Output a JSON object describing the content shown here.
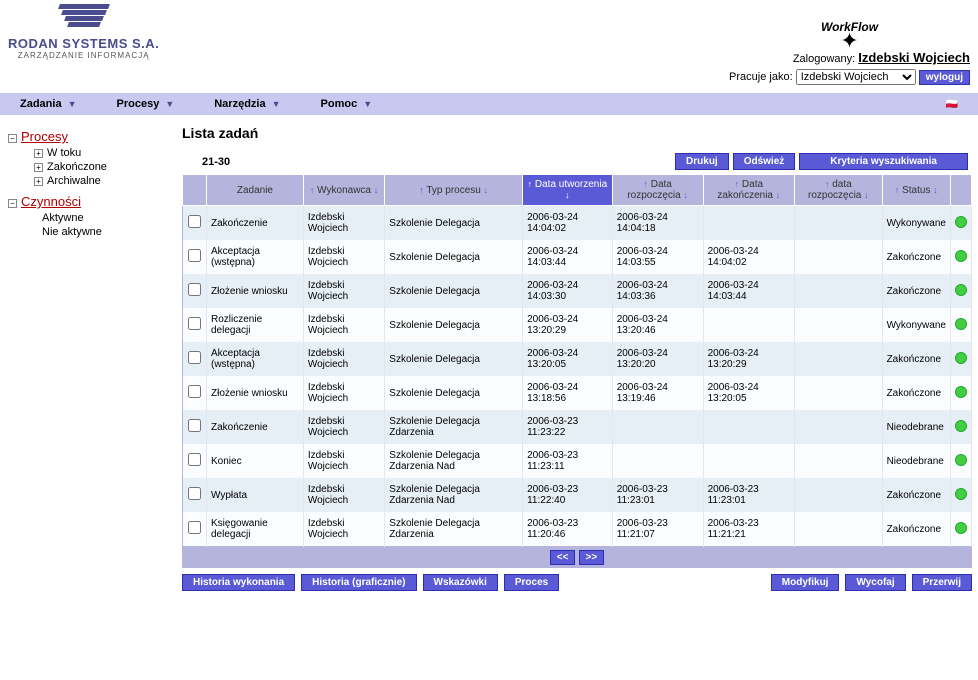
{
  "header": {
    "company_name": "RODAN SYSTEMS S.A.",
    "company_tagline": "ZARZĄDZANIE INFORMACJĄ",
    "workflow_label": "WorkFlow",
    "logged_label": "Zalogowany:",
    "logged_name": "Izdebski Wojciech",
    "works_as_label": "Pracuje jako:",
    "works_as_value": "Izdebski Wojciech",
    "logout_label": "wyloguj"
  },
  "menubar": {
    "items": [
      "Zadania",
      "Procesy",
      "Narzędzia",
      "Pomoc"
    ]
  },
  "sidebar": {
    "groups": [
      {
        "label": "Procesy",
        "expanded": true,
        "children_with_toggle": true,
        "children": [
          "W toku",
          "Zakończone",
          "Archiwalne"
        ]
      },
      {
        "label": "Czynności",
        "expanded": true,
        "children_with_toggle": false,
        "children": [
          "Aktywne",
          "Nie aktywne"
        ]
      }
    ]
  },
  "content": {
    "title": "Lista zadań",
    "range": "21-30",
    "buttons": {
      "print": "Drukuj",
      "refresh": "Odśwież",
      "criteria": "Kryteria wyszukiwania"
    },
    "columns": [
      {
        "label": "",
        "sortable": false
      },
      {
        "label": "Zadanie",
        "sortable": false
      },
      {
        "label": "Wykonawca",
        "sortable": true
      },
      {
        "label": "Typ procesu",
        "sortable": true
      },
      {
        "label": "Data utworzenia",
        "sortable": true,
        "active": true
      },
      {
        "label": "Data rozpoczęcia",
        "sortable": true
      },
      {
        "label": "Data zakończenia",
        "sortable": true
      },
      {
        "label": "data rozpoczęcia",
        "sortable": true
      },
      {
        "label": "Status",
        "sortable": true
      },
      {
        "label": "",
        "sortable": false
      }
    ],
    "rows": [
      {
        "task": "Zakończenie",
        "exec": "Izdebski Wojciech",
        "ptype": "Szkolenie Delegacja",
        "dc": "2006-03-24 14:04:02",
        "ds": "2006-03-24 14:04:18",
        "de": "",
        "da": "",
        "status": "Wykonywane"
      },
      {
        "task": "Akceptacja (wstępna)",
        "exec": "Izdebski Wojciech",
        "ptype": "Szkolenie Delegacja",
        "dc": "2006-03-24 14:03:44",
        "ds": "2006-03-24 14:03:55",
        "de": "2006-03-24 14:04:02",
        "da": "",
        "status": "Zakończone"
      },
      {
        "task": "Złożenie wniosku",
        "exec": "Izdebski Wojciech",
        "ptype": "Szkolenie Delegacja",
        "dc": "2006-03-24 14:03:30",
        "ds": "2006-03-24 14:03:36",
        "de": "2006-03-24 14:03:44",
        "da": "",
        "status": "Zakończone"
      },
      {
        "task": "Rozliczenie delegacji",
        "exec": "Izdebski Wojciech",
        "ptype": "Szkolenie Delegacja",
        "dc": "2006-03-24 13:20:29",
        "ds": "2006-03-24 13:20:46",
        "de": "",
        "da": "",
        "status": "Wykonywane"
      },
      {
        "task": "Akceptacja (wstępna)",
        "exec": "Izdebski Wojciech",
        "ptype": "Szkolenie Delegacja",
        "dc": "2006-03-24 13:20:05",
        "ds": "2006-03-24 13:20:20",
        "de": "2006-03-24 13:20:29",
        "da": "",
        "status": "Zakończone"
      },
      {
        "task": "Złożenie wniosku",
        "exec": "Izdebski Wojciech",
        "ptype": "Szkolenie Delegacja",
        "dc": "2006-03-24 13:18:56",
        "ds": "2006-03-24 13:19:46",
        "de": "2006-03-24 13:20:05",
        "da": "",
        "status": "Zakończone"
      },
      {
        "task": "Zakończenie",
        "exec": "Izdebski Wojciech",
        "ptype": "Szkolenie Delegacja Zdarzenia",
        "dc": "2006-03-23 11:23:22",
        "ds": "",
        "de": "",
        "da": "",
        "status": "Nieodebrane"
      },
      {
        "task": "Koniec",
        "exec": "Izdebski Wojciech",
        "ptype": "Szkolenie Delegacja Zdarzenia Nad",
        "dc": "2006-03-23 11:23:11",
        "ds": "",
        "de": "",
        "da": "",
        "status": "Nieodebrane"
      },
      {
        "task": "Wypłata",
        "exec": "Izdebski Wojciech",
        "ptype": "Szkolenie Delegacja Zdarzenia Nad",
        "dc": "2006-03-23 11:22:40",
        "ds": "2006-03-23 11:23:01",
        "de": "2006-03-23 11:23:01",
        "da": "",
        "status": "Zakończone"
      },
      {
        "task": "Księgowanie delegacji",
        "exec": "Izdebski Wojciech",
        "ptype": "Szkolenie Delegacja Zdarzenia",
        "dc": "2006-03-23 11:20:46",
        "ds": "2006-03-23 11:21:07",
        "de": "2006-03-23 11:21:21",
        "da": "",
        "status": "Zakończone"
      }
    ],
    "pager": {
      "prev": "<<",
      "next": ">>"
    },
    "bottom_buttons": {
      "history_exec": "Historia wykonania",
      "history_graph": "Historia (graficznie)",
      "hints": "Wskazówki",
      "process": "Proces",
      "modify": "Modyfikuj",
      "withdraw": "Wycofaj",
      "interrupt": "Przerwij"
    }
  },
  "colors": {
    "menubar_bg": "#c8c8f0",
    "th_bg": "#b4b4dc",
    "th_active_bg": "#5a5ad6",
    "btn_bg": "#5a5ad6",
    "row_odd": "#e6eef6",
    "row_even": "#fafcfe",
    "tree_root_color": "#b00000",
    "status_dot": "#44cc44"
  }
}
